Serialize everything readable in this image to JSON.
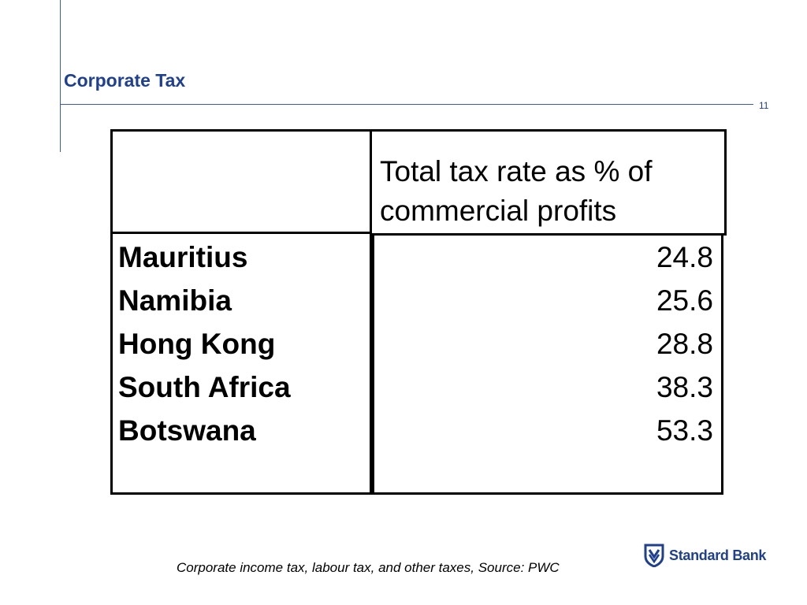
{
  "slide": {
    "title": "Corporate Tax",
    "page_number": "11"
  },
  "table": {
    "header": [
      "",
      "Total tax rate as % of commercial profits"
    ],
    "rows": [
      {
        "country": "Mauritius",
        "value": "24.8"
      },
      {
        "country": "Namibia",
        "value": "25.6"
      },
      {
        "country": "Hong Kong",
        "value": "28.8"
      },
      {
        "country": "South Africa",
        "value": "38.3"
      },
      {
        "country": "Botswana",
        "value": "53.3"
      }
    ]
  },
  "caption": "Corporate income tax, labour tax, and other taxes, Source: PWC",
  "logo": {
    "text": "Standard Bank",
    "icon": "standard-bank-shield-icon",
    "color": "#1f3f8f"
  },
  "colors": {
    "accent": "#1f3f8f",
    "rule": "#3d5aa8"
  }
}
